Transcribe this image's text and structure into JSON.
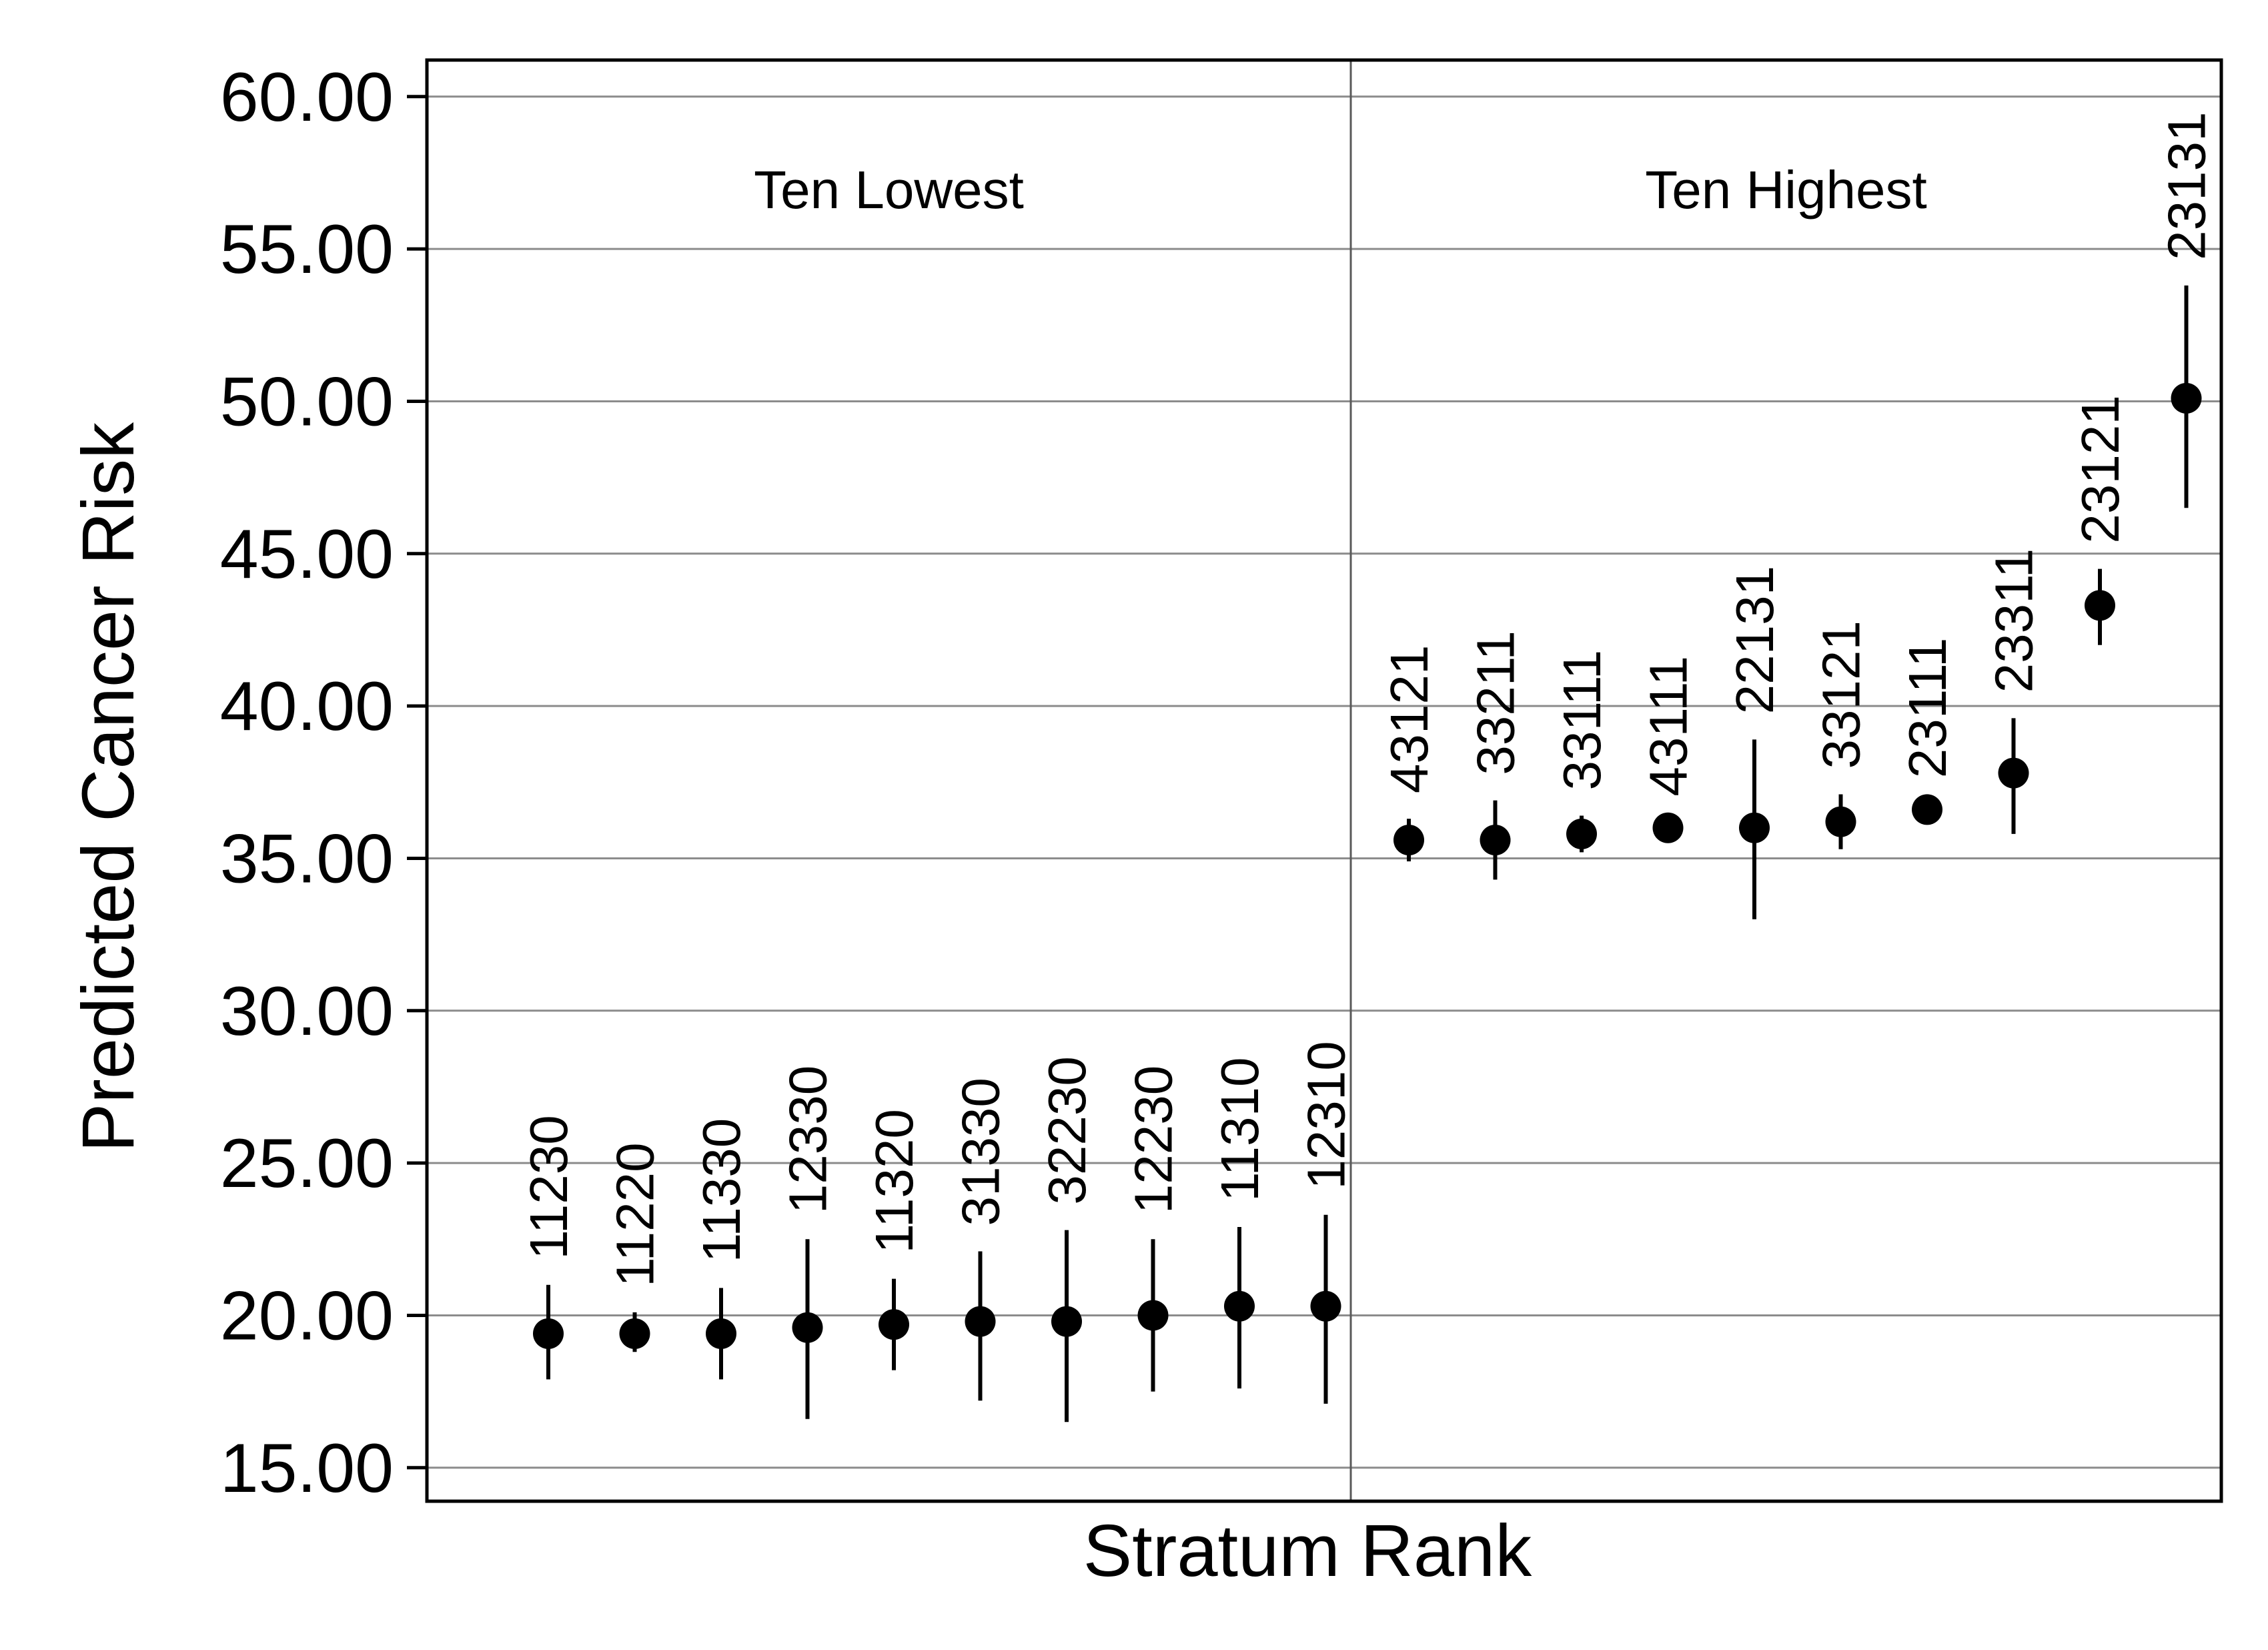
{
  "chart_data": {
    "type": "scatter",
    "title": "",
    "xlabel": "Stratum Rank",
    "ylabel": "Predicted Cancer Risk",
    "ylim": [
      13.9,
      61.2
    ],
    "yticks": [
      "15.00",
      "20.00",
      "25.00",
      "30.00",
      "35.00",
      "40.00",
      "45.00",
      "50.00",
      "55.00",
      "60.00"
    ],
    "grid": true,
    "panels": [
      {
        "label": "Ten Lowest",
        "strata": [
          {
            "id": "11230",
            "estimate": 19.4,
            "ci": [
              17.9,
              21.0
            ]
          },
          {
            "id": "11220",
            "estimate": 19.4,
            "ci": [
              18.8,
              20.1
            ]
          },
          {
            "id": "11330",
            "estimate": 19.4,
            "ci": [
              17.9,
              20.9
            ]
          },
          {
            "id": "12330",
            "estimate": 19.6,
            "ci": [
              16.6,
              22.5
            ]
          },
          {
            "id": "11320",
            "estimate": 19.7,
            "ci": [
              18.2,
              21.2
            ]
          },
          {
            "id": "31330",
            "estimate": 19.8,
            "ci": [
              17.2,
              22.1
            ]
          },
          {
            "id": "32230",
            "estimate": 19.8,
            "ci": [
              16.5,
              22.8
            ]
          },
          {
            "id": "12230",
            "estimate": 20.0,
            "ci": [
              17.5,
              22.5
            ]
          },
          {
            "id": "11310",
            "estimate": 20.3,
            "ci": [
              17.6,
              22.9
            ]
          },
          {
            "id": "12310",
            "estimate": 20.3,
            "ci": [
              17.1,
              23.3
            ]
          }
        ]
      },
      {
        "label": "Ten Highest",
        "strata": [
          {
            "id": "43121",
            "estimate": 35.6,
            "ci": [
              34.9,
              36.3
            ]
          },
          {
            "id": "33211",
            "estimate": 35.6,
            "ci": [
              34.3,
              36.9
            ]
          },
          {
            "id": "33111",
            "estimate": 35.8,
            "ci": [
              35.2,
              36.4
            ]
          },
          {
            "id": "43111",
            "estimate": 36.0,
            "ci": [
              35.8,
              36.2
            ]
          },
          {
            "id": "22131",
            "estimate": 36.0,
            "ci": [
              33.0,
              38.9
            ]
          },
          {
            "id": "33121",
            "estimate": 36.2,
            "ci": [
              35.3,
              37.1
            ]
          },
          {
            "id": "23111",
            "estimate": 36.6,
            "ci": [
              36.4,
              36.8
            ]
          },
          {
            "id": "23311",
            "estimate": 37.8,
            "ci": [
              35.8,
              39.6
            ]
          },
          {
            "id": "23121",
            "estimate": 43.3,
            "ci": [
              42.0,
              44.5
            ]
          },
          {
            "id": "23131",
            "estimate": 50.1,
            "ci": [
              46.5,
              53.8
            ]
          }
        ]
      }
    ]
  }
}
